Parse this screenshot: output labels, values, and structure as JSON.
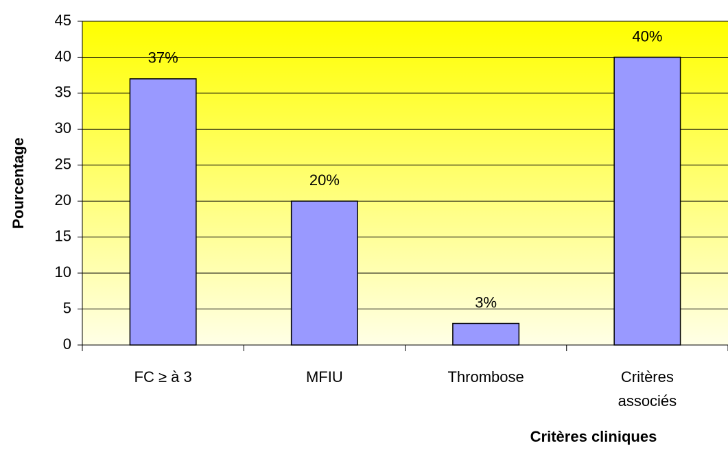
{
  "chart_data": {
    "type": "bar",
    "x_label": "Critères cliniques",
    "y_label": "Pourcentage",
    "categories": [
      "FC ≥ à 3",
      "MFIU",
      "Thrombose",
      "Critères\nassociés"
    ],
    "values": [
      37,
      20,
      3,
      40
    ],
    "value_labels": [
      "37%",
      "20%",
      "3%",
      "40%"
    ],
    "color": "#9999ff",
    "ylim": [
      0,
      45
    ],
    "yticks": [
      0,
      5,
      10,
      15,
      20,
      25,
      30,
      35,
      40,
      45
    ],
    "grid": true
  }
}
